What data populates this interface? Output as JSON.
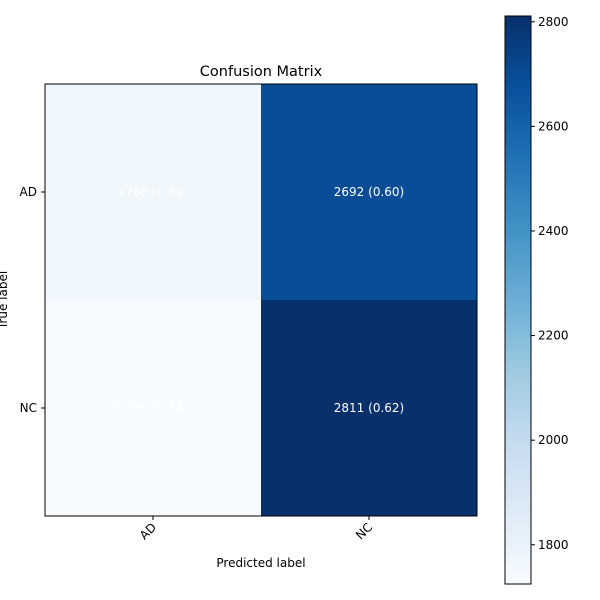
{
  "chart_data": {
    "type": "heatmap",
    "title": "Confusion Matrix",
    "xlabel": "Predicted label",
    "ylabel": "True label",
    "x_categories": [
      "AD",
      "NC"
    ],
    "y_categories": [
      "AD",
      "NC"
    ],
    "values": [
      [
        1768,
        2692
      ],
      [
        1725,
        2811
      ]
    ],
    "fractions": [
      [
        0.4,
        0.6
      ],
      [
        0.38,
        0.62
      ]
    ],
    "cell_labels": [
      [
        "1768 (0.40)",
        "2692 (0.60)"
      ],
      [
        "1725 (0.38)",
        "2811 (0.62)"
      ]
    ],
    "colormap": "Blues",
    "colorbar": {
      "range": [
        1725,
        2811
      ],
      "ticks": [
        1800,
        2000,
        2200,
        2400,
        2600,
        2800
      ],
      "tick_labels": [
        "1800",
        "2000",
        "2200",
        "2400",
        "2600",
        "2800"
      ]
    },
    "cell_text_color": "#ffffff"
  }
}
